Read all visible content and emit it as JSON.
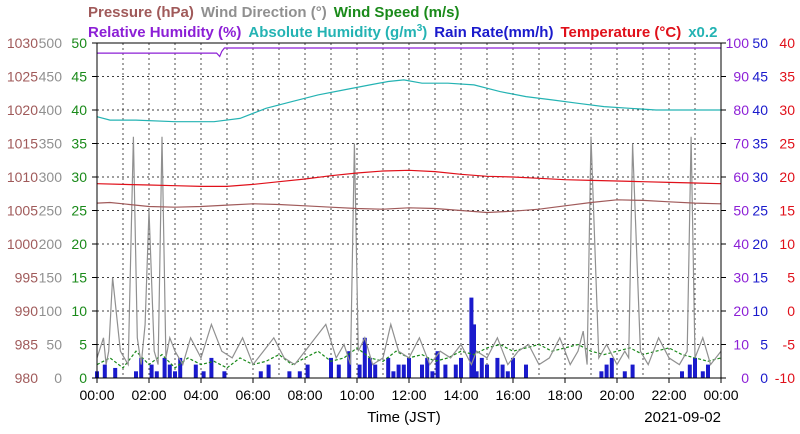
{
  "chart_data": {
    "type": "line",
    "headers": {
      "line1": [
        {
          "text": "Pressure (hPa)",
          "color": "#a05a5a"
        },
        {
          "text": "Wind Direction (°)",
          "color": "#909090"
        },
        {
          "text": "Wind Speed (m/s)",
          "color": "#1a8a1a"
        }
      ],
      "line2": [
        {
          "text": "Relative Humidity (%)",
          "color": "#8c1fd6"
        },
        {
          "text": "Absolute Humidity (g/m",
          "color": "#24b3b3"
        },
        {
          "text": "Rain Rate(mm/h)",
          "color": "#1a1acc"
        },
        {
          "text": "Temperature (°C)",
          "color": "#e0101a"
        },
        {
          "text": "x0.2",
          "color": "#24b3b3"
        }
      ],
      "abs_humidity_sup": "3",
      "abs_humidity_close": ")"
    },
    "date": "2021-09-02",
    "xlabel": "Time (JST)",
    "x_ticks": [
      "00:00",
      "02:00",
      "04:00",
      "06:00",
      "08:00",
      "10:00",
      "12:00",
      "14:00",
      "16:00",
      "18:00",
      "20:00",
      "22:00",
      "00:00"
    ],
    "xlim_hours": [
      0,
      24
    ],
    "left_axes": {
      "pressure": {
        "color": "#a05a5a",
        "unit": "hPa",
        "range": [
          980,
          1030
        ],
        "ticks": [
          "980",
          "985",
          "990",
          "995",
          "1000",
          "1005",
          "1010",
          "1015",
          "1020",
          "1025",
          "1030"
        ]
      },
      "wind_direction": {
        "color": "#909090",
        "unit": "°",
        "range": [
          0,
          500
        ],
        "ticks": [
          "0",
          "50",
          "100",
          "150",
          "200",
          "250",
          "300",
          "350",
          "400",
          "450",
          "500"
        ]
      },
      "wind_speed": {
        "color": "#1a8a1a",
        "unit": "m/s",
        "range": [
          0,
          50
        ],
        "ticks": [
          "0",
          "5",
          "10",
          "15",
          "20",
          "25",
          "30",
          "35",
          "40",
          "45",
          "50"
        ]
      }
    },
    "right_axes": {
      "relative_humidity": {
        "color": "#8c1fd6",
        "unit": "%",
        "range": [
          0,
          100
        ],
        "ticks": [
          "0",
          "10",
          "20",
          "30",
          "40",
          "50",
          "60",
          "70",
          "80",
          "90",
          "100"
        ]
      },
      "rain_rate": {
        "color": "#1a1acc",
        "unit": "mm/h",
        "range": [
          0,
          50
        ],
        "ticks": [
          "0",
          "5",
          "10",
          "15",
          "20",
          "25",
          "30",
          "35",
          "40",
          "45",
          "50"
        ]
      },
      "temperature": {
        "color": "#e0101a",
        "unit": "°C",
        "range": [
          -10,
          40
        ],
        "ticks": [
          "-10",
          "-5",
          "0",
          "5",
          "10",
          "15",
          "20",
          "25",
          "30",
          "35",
          "40"
        ]
      }
    },
    "grid": true,
    "series": [
      {
        "name": "Relative Humidity (%)",
        "color": "#8c1fd6",
        "axis": "relative_humidity",
        "x": [
          0,
          4.6,
          4.72,
          4.8,
          4.9,
          24
        ],
        "y": [
          97,
          97,
          96,
          97.5,
          98.5,
          98.5
        ]
      },
      {
        "name": "Absolute Humidity (g/m3)",
        "color": "#24b3b3",
        "axis": "relative_humidity",
        "x": [
          0,
          0.5,
          1.5,
          3,
          4.5,
          5.5,
          6.5,
          7.5,
          8.5,
          9.5,
          10.5,
          11.2,
          11.8,
          12.5,
          13.5,
          14.5,
          15.5,
          16.5,
          17.5,
          18.5,
          19.5,
          20.5,
          21.5,
          22.5,
          24
        ],
        "y": [
          78,
          77,
          77,
          76.5,
          76.5,
          77.5,
          80.5,
          82.5,
          84.5,
          86,
          87.5,
          88.5,
          89,
          88,
          88,
          87.5,
          85.5,
          84,
          83,
          82,
          81,
          80.5,
          80,
          80,
          80
        ]
      },
      {
        "name": "Temperature (°C)",
        "color": "#e0101a",
        "axis": "temperature",
        "x": [
          0,
          1,
          2,
          3,
          4,
          5,
          6,
          7,
          8,
          9,
          10,
          11,
          12,
          13,
          14,
          15,
          16,
          17,
          18,
          19,
          20,
          21,
          22,
          23,
          24
        ],
        "y": [
          19,
          18.9,
          18.8,
          18.7,
          18.6,
          18.6,
          18.9,
          19.3,
          19.7,
          20.2,
          20.6,
          20.9,
          21,
          20.8,
          20.4,
          20.1,
          20,
          19.8,
          19.6,
          19.5,
          19.4,
          19.3,
          19.2,
          19.1,
          19
        ]
      },
      {
        "name": "Pressure (hPa)",
        "color": "#a05a5a",
        "axis": "pressure",
        "x": [
          0,
          0.5,
          1,
          2,
          3,
          4,
          5,
          6,
          7,
          8,
          9,
          10,
          11,
          12,
          13,
          14,
          15,
          16,
          17,
          18,
          19,
          20,
          21,
          22,
          23,
          24
        ],
        "y": [
          1006.1,
          1006.2,
          1006,
          1005.6,
          1005.5,
          1005.6,
          1005.8,
          1006,
          1005.9,
          1005.7,
          1005.5,
          1005.3,
          1005.2,
          1005.4,
          1005.3,
          1005,
          1004.7,
          1004.9,
          1005.2,
          1005.7,
          1006.2,
          1006.6,
          1006.5,
          1006.3,
          1006.1,
          1006
        ]
      },
      {
        "name": "Wind Direction (°)",
        "color": "#909090",
        "axis": "wind_direction",
        "x": [
          0,
          0.25,
          0.35,
          0.45,
          0.6,
          0.9,
          1.2,
          1.4,
          1.55,
          1.7,
          1.85,
          2.0,
          2.2,
          2.35,
          2.5,
          2.65,
          2.8,
          3.0,
          3.3,
          3.6,
          4.0,
          4.4,
          4.8,
          5.2,
          5.6,
          6.0,
          6.4,
          6.8,
          7.2,
          7.6,
          8.0,
          8.4,
          8.8,
          9.2,
          9.5,
          9.75,
          9.9,
          10.05,
          10.3,
          10.6,
          11.0,
          11.3,
          11.6,
          12.0,
          12.4,
          12.8,
          13.2,
          13.6,
          14.0,
          14.4,
          14.6,
          15.0,
          15.4,
          15.8,
          16.2,
          16.6,
          17.0,
          17.4,
          17.8,
          18.2,
          18.5,
          18.7,
          18.85,
          19.0,
          19.3,
          19.6,
          20.0,
          20.3,
          20.45,
          20.6,
          20.9,
          21.2,
          21.6,
          22.0,
          22.4,
          22.7,
          22.85,
          23.0,
          23.3,
          23.6,
          24.0
        ],
        "y": [
          30,
          60,
          20,
          40,
          150,
          40,
          20,
          360,
          60,
          20,
          80,
          250,
          40,
          20,
          360,
          30,
          60,
          40,
          20,
          60,
          30,
          80,
          40,
          30,
          60,
          20,
          40,
          60,
          30,
          20,
          40,
          60,
          80,
          30,
          50,
          20,
          350,
          40,
          60,
          20,
          30,
          80,
          40,
          30,
          60,
          20,
          40,
          30,
          50,
          20,
          40,
          30,
          60,
          20,
          40,
          50,
          20,
          30,
          60,
          20,
          40,
          70,
          20,
          360,
          30,
          50,
          20,
          40,
          30,
          350,
          40,
          20,
          60,
          30,
          20,
          40,
          360,
          30,
          60,
          20,
          40
        ]
      },
      {
        "name": "Wind Speed (m/s)",
        "color": "#1a8a1a",
        "axis": "wind_speed",
        "x": [
          0,
          0.5,
          1,
          1.5,
          2,
          2.5,
          3,
          3.5,
          4,
          4.5,
          5,
          5.5,
          6,
          6.5,
          7,
          7.5,
          8,
          8.5,
          9,
          9.5,
          10,
          10.5,
          11,
          11.5,
          12,
          12.5,
          13,
          13.5,
          14,
          14.5,
          15,
          15.5,
          16,
          16.5,
          17,
          17.5,
          18,
          18.5,
          19,
          19.5,
          20,
          20.5,
          21,
          21.5,
          22,
          22.5,
          23,
          23.5,
          24
        ],
        "y": [
          2,
          3,
          1.5,
          4,
          2,
          3.5,
          1.5,
          3,
          2,
          2.5,
          1.5,
          3,
          2,
          2.5,
          3.5,
          2,
          3,
          4,
          2.5,
          3,
          4.5,
          3,
          2.5,
          4,
          3,
          3.5,
          2.5,
          3,
          4,
          3.5,
          4.5,
          5,
          4,
          4.5,
          5,
          4,
          4.5,
          5,
          4,
          3.5,
          4,
          4.5,
          3.5,
          4,
          4.5,
          3.5,
          3,
          2.5,
          3
        ]
      },
      {
        "name": "Rain Rate(mm/h)",
        "color": "#1a1acc",
        "axis": "rain_rate",
        "x": [
          0,
          0.3,
          0.5,
          0.7,
          1.5,
          1.7,
          1.9,
          2.1,
          2.3,
          2.6,
          2.8,
          3.0,
          3.2,
          3.5,
          3.8,
          4.1,
          4.4,
          4.6,
          4.9,
          6.3,
          6.6,
          7.1,
          7.4,
          7.8,
          8.1,
          8.6,
          9.0,
          9.3,
          9.5,
          9.7,
          9.9,
          10.1,
          10.3,
          10.5,
          10.7,
          10.9,
          11.2,
          11.4,
          11.6,
          11.8,
          12.0,
          12.3,
          12.5,
          12.7,
          12.9,
          13.1,
          13.4,
          13.6,
          13.8,
          14.0,
          14.2,
          14.4,
          14.5,
          14.6,
          14.8,
          15.0,
          15.2,
          15.4,
          15.6,
          15.8,
          16.0,
          16.2,
          16.5,
          19.4,
          19.6,
          19.8,
          20.1,
          20.3,
          20.6,
          22.5,
          22.8,
          23.0,
          23.3,
          23.5
        ],
        "y": [
          1,
          2,
          0,
          1.5,
          1,
          3,
          0,
          2,
          1,
          3,
          2,
          1,
          3,
          0,
          2,
          1,
          3,
          0,
          1,
          1,
          2,
          0,
          1,
          1,
          2,
          0,
          3,
          2,
          0,
          4,
          0,
          2,
          6,
          3,
          2,
          0,
          3,
          1,
          2,
          2,
          3,
          0,
          2,
          3,
          1,
          4,
          2,
          0,
          2,
          3,
          0,
          12,
          8,
          1,
          3,
          2,
          0,
          3,
          2,
          1,
          3,
          0,
          2,
          1,
          2,
          3,
          0,
          1,
          2,
          1,
          2,
          3,
          1,
          2
        ]
      }
    ]
  }
}
